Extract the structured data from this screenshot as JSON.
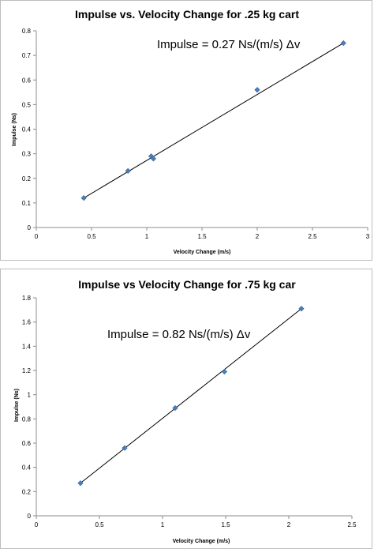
{
  "chart_data": [
    {
      "type": "scatter",
      "title": "Impulse vs. Velocity Change for .25 kg cart",
      "xlabel": "Velocity Change (m/s)",
      "ylabel": "Impulse (Ns)",
      "xlim": [
        0,
        3
      ],
      "ylim": [
        0,
        0.8
      ],
      "x_ticks": [
        0,
        0.5,
        1,
        1.5,
        2,
        2.5,
        3
      ],
      "x_tick_labels": [
        "0",
        "0.5",
        "1",
        "1.5",
        "2",
        "2.5",
        "3"
      ],
      "y_ticks": [
        0,
        0.1,
        0.2,
        0.3,
        0.4,
        0.5,
        0.6,
        0.7,
        0.8
      ],
      "y_tick_labels": [
        "0",
        "0.1",
        "0.2",
        "0.3",
        "0.4",
        "0.5",
        "0.6",
        "0.7",
        "0.8"
      ],
      "grid": false,
      "legend": "none",
      "marker_color": "#4a7ebb",
      "series": [
        {
          "points": [
            {
              "x": 0.43,
              "y": 0.12
            },
            {
              "x": 0.83,
              "y": 0.23
            },
            {
              "x": 1.04,
              "y": 0.29
            },
            {
              "x": 1.06,
              "y": 0.28
            },
            {
              "x": 2.0,
              "y": 0.56
            },
            {
              "x": 2.78,
              "y": 0.75
            }
          ]
        }
      ],
      "trendline": {
        "x": [
          0.43,
          2.78
        ],
        "y": [
          0.12,
          0.75
        ],
        "color": "#000000"
      },
      "annotation": "Impulse = 0.27 Ns/(m/s) Δv"
    },
    {
      "type": "scatter",
      "title": "Impulse vs Velocity Change for .75 kg car",
      "xlabel": "Velocity Change (m/s)",
      "ylabel": "Impulse (Ns)",
      "xlim": [
        0,
        2.5
      ],
      "ylim": [
        0,
        1.8
      ],
      "x_ticks": [
        0,
        0.5,
        1,
        1.5,
        2,
        2.5
      ],
      "x_tick_labels": [
        "0",
        "0.5",
        "1",
        "1.5",
        "2",
        "2.5"
      ],
      "y_ticks": [
        0,
        0.2,
        0.4,
        0.6,
        0.8,
        1.0,
        1.2,
        1.4,
        1.6,
        1.8
      ],
      "y_tick_labels": [
        "0",
        "0.2",
        "0.4",
        "0.6",
        "0.8",
        "1",
        "1.2",
        "1.4",
        "1.6",
        "1.8"
      ],
      "grid": false,
      "legend": "none",
      "marker_color": "#4a7ebb",
      "series": [
        {
          "points": [
            {
              "x": 0.35,
              "y": 0.27
            },
            {
              "x": 0.7,
              "y": 0.56
            },
            {
              "x": 1.1,
              "y": 0.89
            },
            {
              "x": 1.49,
              "y": 1.19
            },
            {
              "x": 2.1,
              "y": 1.71
            }
          ]
        }
      ],
      "trendline": {
        "x": [
          0.35,
          2.1
        ],
        "y": [
          0.27,
          1.71
        ],
        "color": "#000000"
      },
      "annotation": "Impulse = 0.82 Ns/(m/s) Δv"
    }
  ]
}
